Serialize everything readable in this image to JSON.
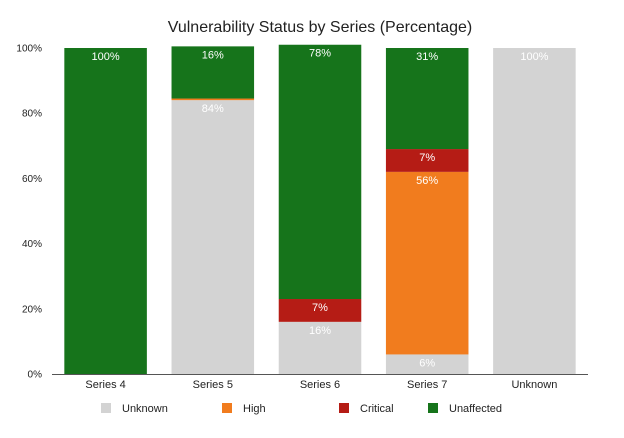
{
  "chart_data": {
    "type": "bar",
    "stacked": true,
    "title": "Vulnerability Status by Series (Percentage)",
    "xlabel": "",
    "ylabel": "",
    "ylim": [
      0,
      100
    ],
    "yticks": [
      "0%",
      "20%",
      "40%",
      "60%",
      "80%",
      "100%"
    ],
    "categories": [
      "Series 4",
      "Series 5",
      "Series 6",
      "Series 7",
      "Unknown"
    ],
    "series": [
      {
        "name": "Unknown",
        "color": "#d3d3d3",
        "values": [
          0,
          84,
          16,
          6,
          100
        ],
        "labels": [
          "",
          "84%",
          "16%",
          "6%",
          "100%"
        ]
      },
      {
        "name": "High",
        "color": "#f17c1e",
        "values": [
          0,
          0.5,
          0,
          56,
          0
        ],
        "labels": [
          "",
          "",
          "",
          "56%",
          ""
        ]
      },
      {
        "name": "Critical",
        "color": "#b51c15",
        "values": [
          0,
          0,
          7,
          7,
          0
        ],
        "labels": [
          "",
          "",
          "7%",
          "7%",
          ""
        ]
      },
      {
        "name": "Unaffected",
        "color": "#16741b",
        "values": [
          100,
          16,
          78,
          31,
          0
        ],
        "labels": [
          "100%",
          "16%",
          "78%",
          "31%",
          ""
        ]
      }
    ],
    "grid": false,
    "legend_position": "bottom"
  }
}
